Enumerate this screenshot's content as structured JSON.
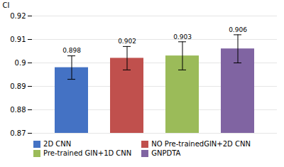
{
  "chart_data": {
    "type": "bar",
    "categories": [
      "2D CNN",
      "NO Pre-trainedGIN+2D CNN",
      "Pre-trained GIN+1D CNN",
      "GNPDTA"
    ],
    "values": [
      0.898,
      0.902,
      0.903,
      0.906
    ],
    "errors": [
      0.005,
      0.005,
      0.006,
      0.006
    ],
    "colors": [
      "#4472c4",
      "#c0504d",
      "#9bbb59",
      "#8064a2"
    ],
    "ylabel": "CI",
    "ylim": [
      0.87,
      0.92
    ],
    "yticks": [
      0.87,
      0.88,
      0.89,
      0.9,
      0.91,
      0.92
    ],
    "grid": true,
    "legend": "bottom",
    "data_labels": true,
    "value_labels": [
      "0.898",
      "0.902",
      "0.903",
      "0.906"
    ],
    "tick_labels": "y"
  }
}
